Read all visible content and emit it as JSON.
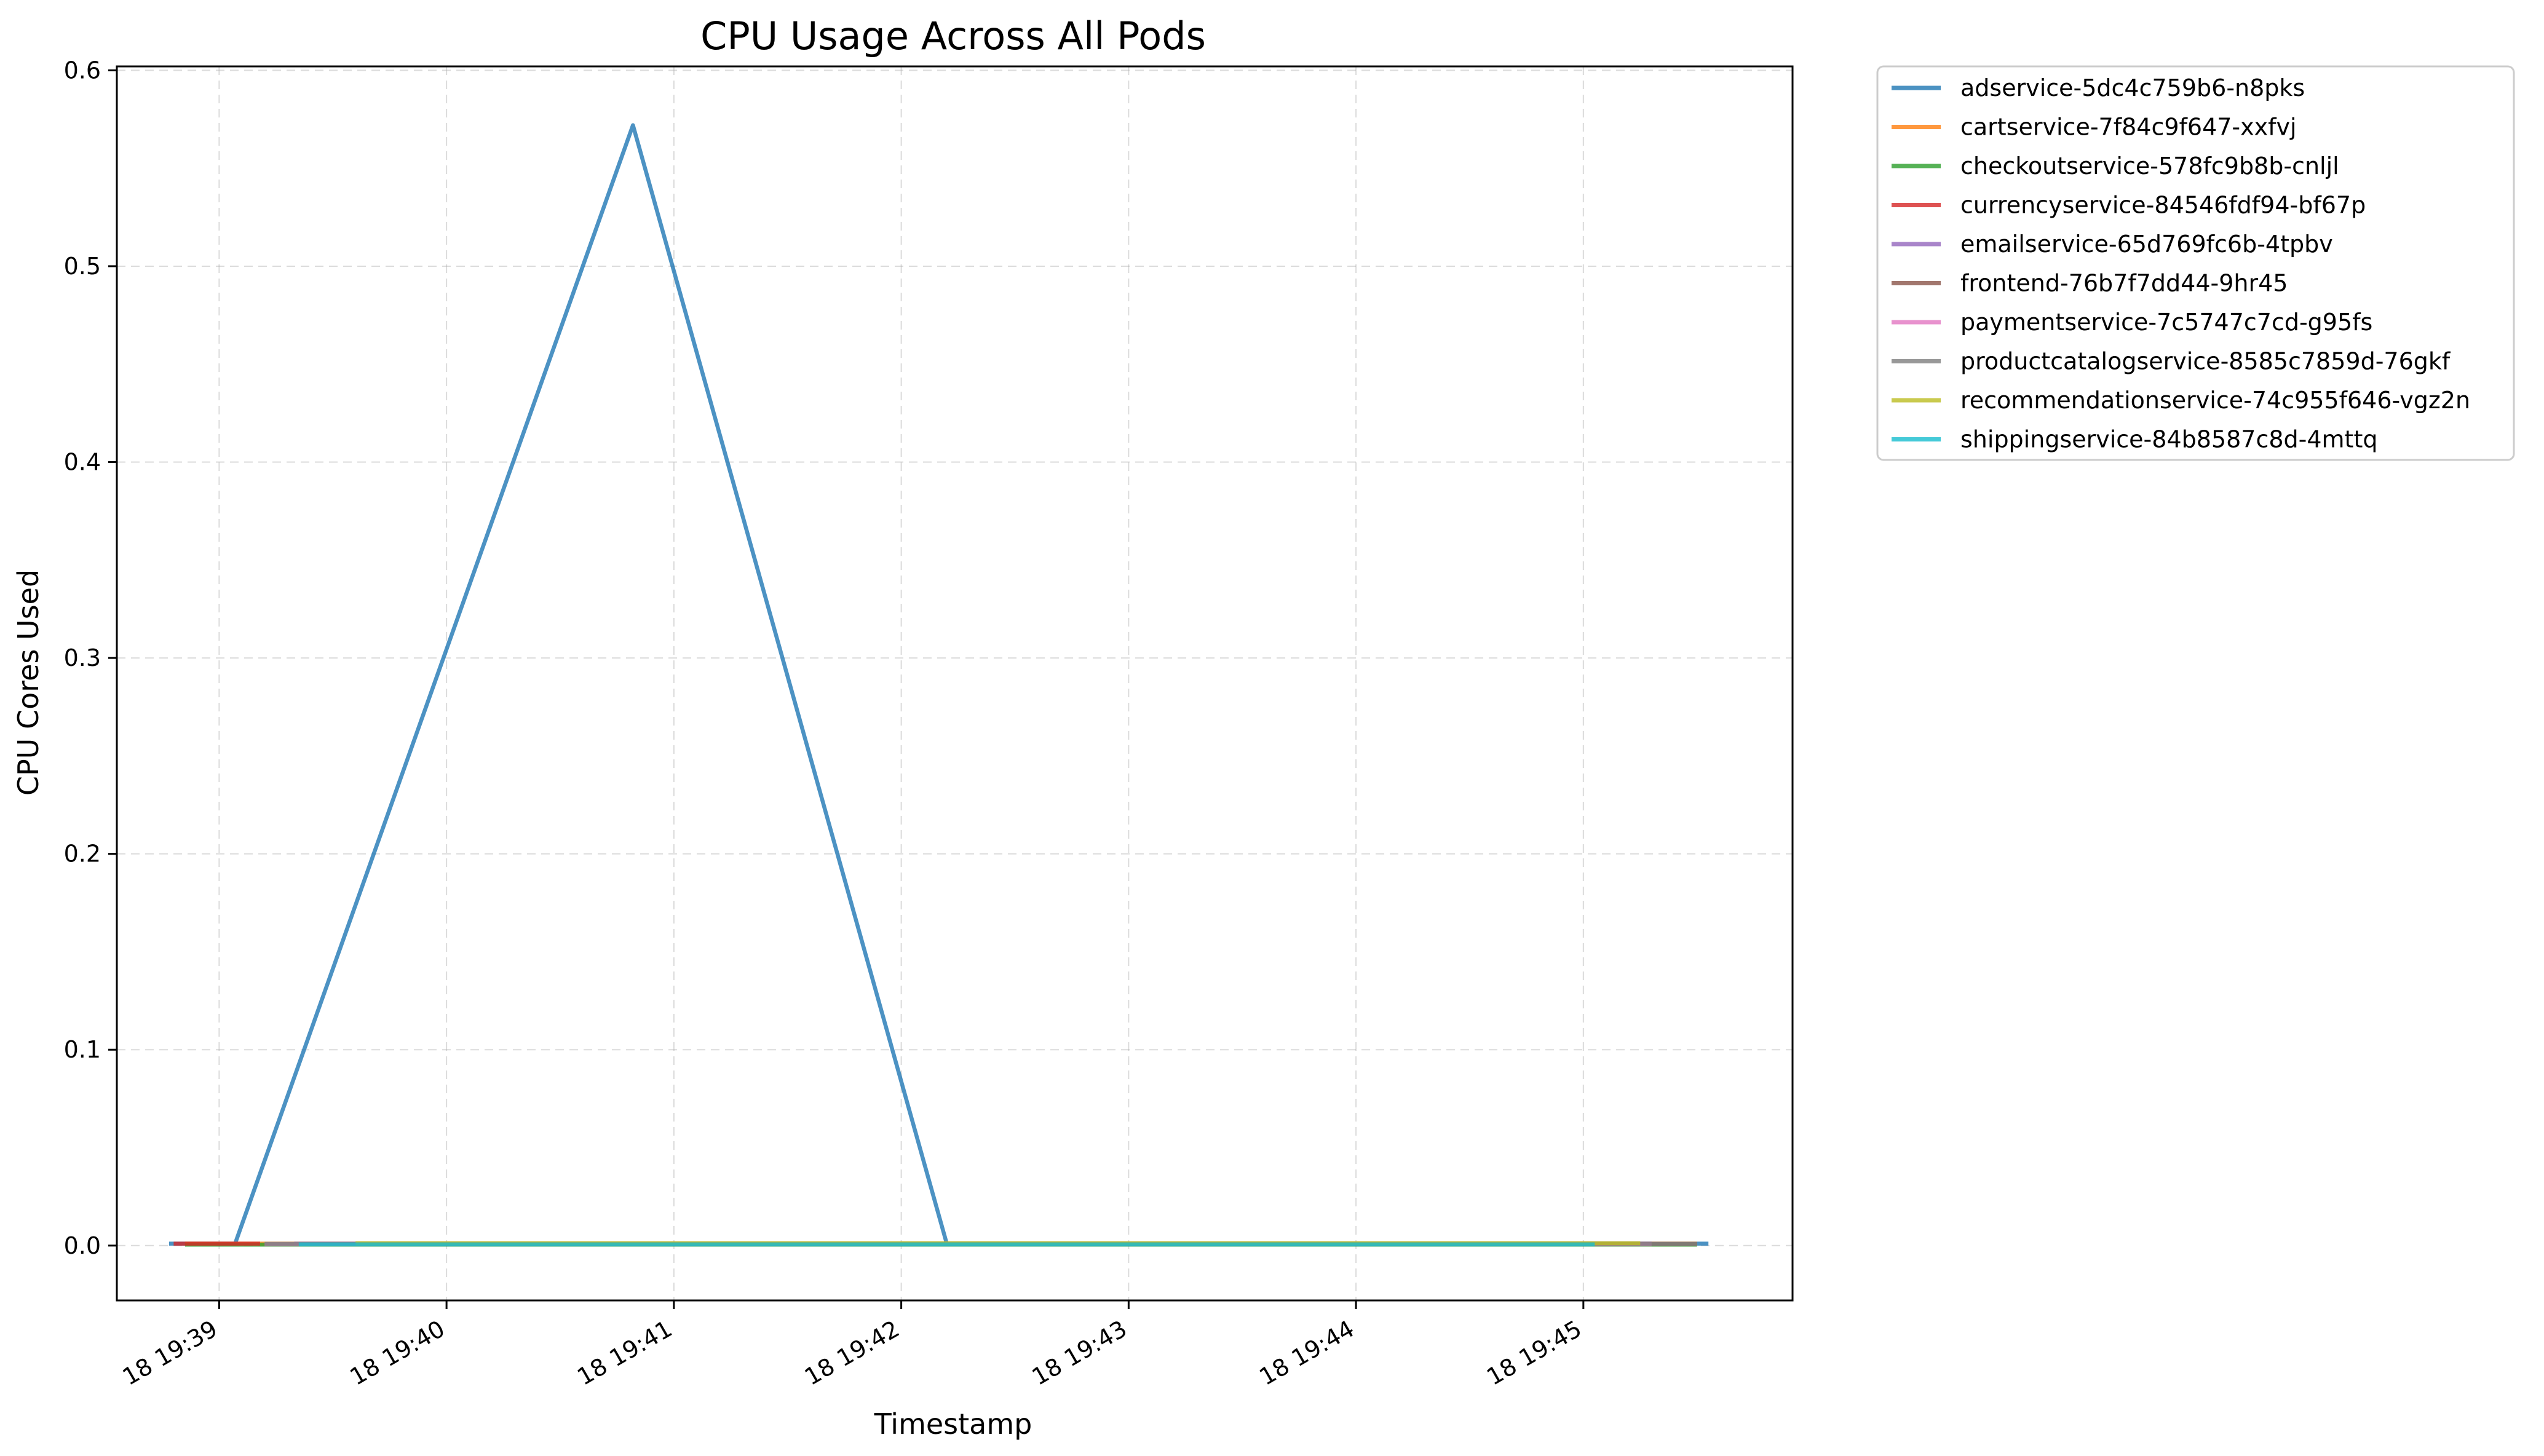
{
  "chart_data": {
    "type": "line",
    "title": "CPU Usage Across All Pods",
    "xlabel": "Timestamp",
    "ylabel": "CPU Cores Used",
    "x_tick_labels": [
      "18 19:39",
      "18 19:40",
      "18 19:41",
      "18 19:42",
      "18 19:43",
      "18 19:44",
      "18 19:45"
    ],
    "x_tick_minutes": [
      39,
      40,
      41,
      42,
      43,
      44,
      45
    ],
    "xlim_minutes": [
      38.55,
      45.92
    ],
    "y_ticks": [
      0.0,
      0.1,
      0.2,
      0.3,
      0.4,
      0.5,
      0.6
    ],
    "y_tick_labels": [
      "0.0",
      "0.1",
      "0.2",
      "0.3",
      "0.4",
      "0.5",
      "0.6"
    ],
    "ylim": [
      -0.028,
      0.602
    ],
    "grid": true,
    "legend_position": "outside-right-top",
    "series": [
      {
        "name": "adservice-5dc4c759b6-n8pks",
        "color": "#1f77b4",
        "points": [
          [
            38.78,
            0.001
          ],
          [
            39.07,
            0.001
          ],
          [
            40.82,
            0.572
          ],
          [
            42.2,
            0.001
          ],
          [
            45.55,
            0.001
          ]
        ]
      },
      {
        "name": "cartservice-7f84c9f647-xxfvj",
        "color": "#ff7f0e",
        "points": [
          [
            38.85,
            0.001
          ],
          [
            45.5,
            0.001
          ]
        ]
      },
      {
        "name": "checkoutservice-578fc9b8b-cnljl",
        "color": "#2ca02c",
        "points": [
          [
            38.85,
            0.0005
          ],
          [
            45.5,
            0.0005
          ]
        ]
      },
      {
        "name": "currencyservice-84546fdf94-bf67p",
        "color": "#d62728",
        "points": [
          [
            38.8,
            0.001
          ],
          [
            39.18,
            0.001
          ]
        ]
      },
      {
        "name": "emailservice-65d769fc6b-4tpbv",
        "color": "#9467bd",
        "points": [
          [
            39.33,
            0.001
          ],
          [
            45.3,
            0.001
          ]
        ]
      },
      {
        "name": "frontend-76b7f7dd44-9hr45",
        "color": "#8c564b",
        "points": [
          [
            45.0,
            0.0008
          ],
          [
            45.5,
            0.0008
          ]
        ]
      },
      {
        "name": "paymentservice-7c5747c7cd-g95fs",
        "color": "#e377c2",
        "points": [
          [
            39.2,
            0.0007
          ],
          [
            45.3,
            0.0007
          ]
        ]
      },
      {
        "name": "productcatalogservice-8585c7859d-76gkf",
        "color": "#7f7f7f",
        "points": [
          [
            39.2,
            0.0009
          ],
          [
            45.5,
            0.0009
          ]
        ]
      },
      {
        "name": "recommendationservice-74c955f646-vgz2n",
        "color": "#bcbd22",
        "points": [
          [
            39.6,
            0.0012
          ],
          [
            45.25,
            0.0012
          ]
        ]
      },
      {
        "name": "shippingservice-84b8587c8d-4mttq",
        "color": "#17becf",
        "points": [
          [
            39.35,
            0.0006
          ],
          [
            45.05,
            0.0006
          ]
        ]
      }
    ]
  }
}
